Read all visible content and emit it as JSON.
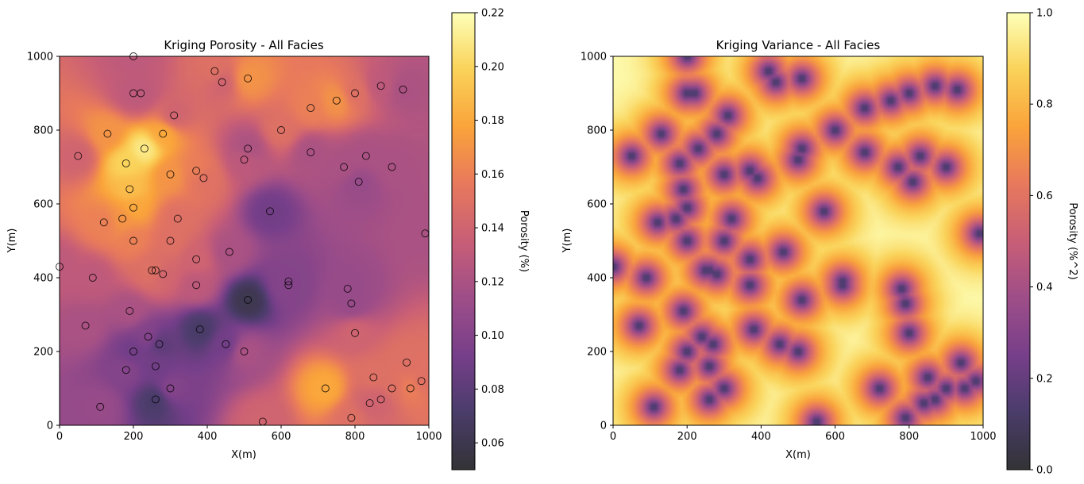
{
  "chart_data": [
    {
      "type": "heatmap",
      "title": "Kriging Porosity - All Facies",
      "xlabel": "X(m)",
      "ylabel": "Y(m)",
      "xlim": [
        0,
        1000
      ],
      "ylim": [
        0,
        1000
      ],
      "xticks": [
        "0",
        "200",
        "400",
        "600",
        "800",
        "1000"
      ],
      "yticks": [
        "0",
        "200",
        "400",
        "600",
        "800",
        "1000"
      ],
      "colormap": "inferno",
      "colorbar": {
        "label": "Porosity (%)",
        "range": [
          0.05,
          0.22
        ],
        "ticks": [
          "0.06",
          "0.08",
          "0.10",
          "0.12",
          "0.14",
          "0.16",
          "0.18",
          "0.20",
          "0.22"
        ]
      },
      "grid": false
    },
    {
      "type": "heatmap",
      "title": "Kriging Variance - All Facies",
      "xlabel": "X(m)",
      "ylabel": "Y(m)",
      "xlim": [
        0,
        1000
      ],
      "ylim": [
        0,
        1000
      ],
      "xticks": [
        "0",
        "200",
        "400",
        "600",
        "800",
        "1000"
      ],
      "yticks": [
        "0",
        "200",
        "400",
        "600",
        "800",
        "1000"
      ],
      "colormap": "inferno",
      "colorbar": {
        "label": "Porosity (%^2)",
        "range": [
          0.0,
          1.0
        ],
        "ticks": [
          "0.0",
          "0.2",
          "0.4",
          "0.6",
          "0.8",
          "1.0"
        ]
      },
      "grid": false
    }
  ],
  "wells": [
    {
      "x": 200,
      "y": 1000,
      "p": 0.13
    },
    {
      "x": 200,
      "y": 900,
      "p": 0.13
    },
    {
      "x": 220,
      "y": 900,
      "p": 0.13
    },
    {
      "x": 420,
      "y": 960,
      "p": 0.15
    },
    {
      "x": 440,
      "y": 930,
      "p": 0.14
    },
    {
      "x": 510,
      "y": 940,
      "p": 0.17
    },
    {
      "x": 310,
      "y": 840,
      "p": 0.14
    },
    {
      "x": 130,
      "y": 790,
      "p": 0.17
    },
    {
      "x": 280,
      "y": 790,
      "p": 0.18
    },
    {
      "x": 230,
      "y": 750,
      "p": 0.21
    },
    {
      "x": 180,
      "y": 710,
      "p": 0.2
    },
    {
      "x": 50,
      "y": 730,
      "p": 0.14
    },
    {
      "x": 300,
      "y": 680,
      "p": 0.17
    },
    {
      "x": 370,
      "y": 690,
      "p": 0.16
    },
    {
      "x": 390,
      "y": 670,
      "p": 0.15
    },
    {
      "x": 190,
      "y": 640,
      "p": 0.19
    },
    {
      "x": 200,
      "y": 590,
      "p": 0.18
    },
    {
      "x": 170,
      "y": 560,
      "p": 0.17
    },
    {
      "x": 120,
      "y": 550,
      "p": 0.16
    },
    {
      "x": 320,
      "y": 560,
      "p": 0.15
    },
    {
      "x": 200,
      "y": 500,
      "p": 0.16
    },
    {
      "x": 300,
      "y": 500,
      "p": 0.15
    },
    {
      "x": 370,
      "y": 450,
      "p": 0.14
    },
    {
      "x": 460,
      "y": 470,
      "p": 0.12
    },
    {
      "x": 250,
      "y": 420,
      "p": 0.15
    },
    {
      "x": 260,
      "y": 420,
      "p": 0.15
    },
    {
      "x": 280,
      "y": 410,
      "p": 0.14
    },
    {
      "x": 90,
      "y": 400,
      "p": 0.13
    },
    {
      "x": 0,
      "y": 430,
      "p": 0.13
    },
    {
      "x": 370,
      "y": 380,
      "p": 0.13
    },
    {
      "x": 190,
      "y": 310,
      "p": 0.12
    },
    {
      "x": 70,
      "y": 270,
      "p": 0.12
    },
    {
      "x": 240,
      "y": 240,
      "p": 0.1
    },
    {
      "x": 200,
      "y": 200,
      "p": 0.09
    },
    {
      "x": 270,
      "y": 220,
      "p": 0.08
    },
    {
      "x": 380,
      "y": 260,
      "p": 0.07
    },
    {
      "x": 450,
      "y": 220,
      "p": 0.09
    },
    {
      "x": 500,
      "y": 200,
      "p": 0.12
    },
    {
      "x": 510,
      "y": 340,
      "p": 0.06
    },
    {
      "x": 180,
      "y": 150,
      "p": 0.1
    },
    {
      "x": 260,
      "y": 160,
      "p": 0.09
    },
    {
      "x": 300,
      "y": 100,
      "p": 0.1
    },
    {
      "x": 260,
      "y": 70,
      "p": 0.07
    },
    {
      "x": 110,
      "y": 50,
      "p": 0.11
    },
    {
      "x": 550,
      "y": 10,
      "p": 0.14
    },
    {
      "x": 500,
      "y": 720,
      "p": 0.13
    },
    {
      "x": 510,
      "y": 750,
      "p": 0.12
    },
    {
      "x": 600,
      "y": 800,
      "p": 0.15
    },
    {
      "x": 680,
      "y": 860,
      "p": 0.16
    },
    {
      "x": 750,
      "y": 880,
      "p": 0.17
    },
    {
      "x": 800,
      "y": 900,
      "p": 0.15
    },
    {
      "x": 870,
      "y": 920,
      "p": 0.13
    },
    {
      "x": 930,
      "y": 910,
      "p": 0.12
    },
    {
      "x": 680,
      "y": 740,
      "p": 0.12
    },
    {
      "x": 770,
      "y": 700,
      "p": 0.12
    },
    {
      "x": 810,
      "y": 660,
      "p": 0.11
    },
    {
      "x": 830,
      "y": 730,
      "p": 0.12
    },
    {
      "x": 900,
      "y": 700,
      "p": 0.12
    },
    {
      "x": 570,
      "y": 580,
      "p": 0.09
    },
    {
      "x": 990,
      "y": 520,
      "p": 0.12
    },
    {
      "x": 620,
      "y": 390,
      "p": 0.1
    },
    {
      "x": 620,
      "y": 380,
      "p": 0.1
    },
    {
      "x": 780,
      "y": 370,
      "p": 0.11
    },
    {
      "x": 790,
      "y": 330,
      "p": 0.11
    },
    {
      "x": 800,
      "y": 250,
      "p": 0.14
    },
    {
      "x": 720,
      "y": 100,
      "p": 0.18
    },
    {
      "x": 850,
      "y": 130,
      "p": 0.15
    },
    {
      "x": 840,
      "y": 60,
      "p": 0.14
    },
    {
      "x": 870,
      "y": 70,
      "p": 0.14
    },
    {
      "x": 900,
      "y": 100,
      "p": 0.15
    },
    {
      "x": 950,
      "y": 100,
      "p": 0.16
    },
    {
      "x": 940,
      "y": 170,
      "p": 0.15
    },
    {
      "x": 980,
      "y": 120,
      "p": 0.15
    },
    {
      "x": 790,
      "y": 20,
      "p": 0.15
    }
  ]
}
